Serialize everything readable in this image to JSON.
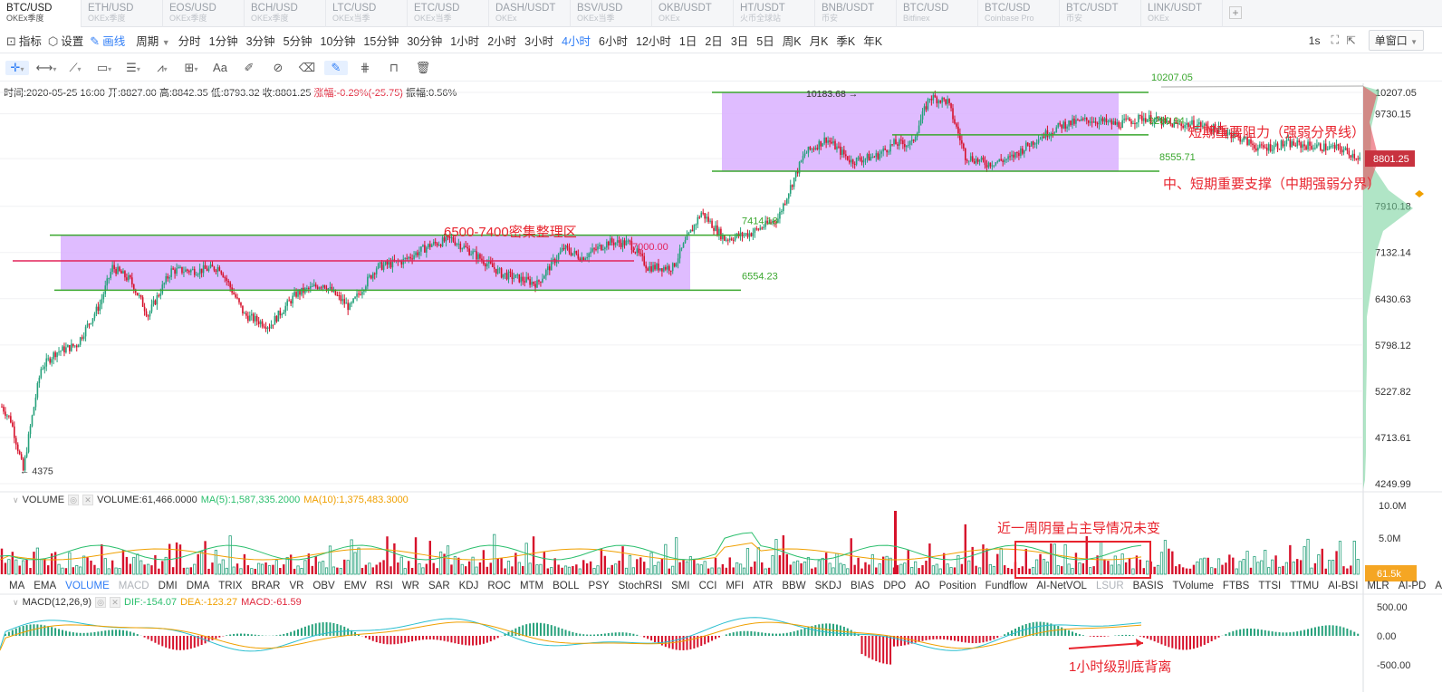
{
  "tabs": [
    {
      "pair": "BTC/USD",
      "exchange": "OKEx季度"
    },
    {
      "pair": "ETH/USD",
      "exchange": "OKEx季度"
    },
    {
      "pair": "EOS/USD",
      "exchange": "OKEx季度"
    },
    {
      "pair": "BCH/USD",
      "exchange": "OKEx季度"
    },
    {
      "pair": "LTC/USD",
      "exchange": "OKEx当季"
    },
    {
      "pair": "ETC/USD",
      "exchange": "OKEx当季"
    },
    {
      "pair": "DASH/USDT",
      "exchange": "OKEx"
    },
    {
      "pair": "BSV/USD",
      "exchange": "OKEx当季"
    },
    {
      "pair": "OKB/USDT",
      "exchange": "OKEx"
    },
    {
      "pair": "HT/USDT",
      "exchange": "火币全球站"
    },
    {
      "pair": "BNB/USDT",
      "exchange": "币安"
    },
    {
      "pair": "BTC/USD",
      "exchange": "Bitfinex"
    },
    {
      "pair": "BTC/USD",
      "exchange": "Coinbase Pro"
    },
    {
      "pair": "BTC/USDT",
      "exchange": "币安"
    },
    {
      "pair": "LINK/USDT",
      "exchange": "OKEx"
    }
  ],
  "tab_add_label": "+",
  "toolbar": {
    "indicator_label": "指标",
    "settings_label": "设置",
    "draw_label": "画线",
    "period_label": "周期",
    "intervals": [
      "分时",
      "1分钟",
      "3分钟",
      "5分钟",
      "10分钟",
      "15分钟",
      "30分钟",
      "1小时",
      "2小时",
      "3小时",
      "4小时",
      "6小时",
      "12小时",
      "1日",
      "2日",
      "3日",
      "5日",
      "周K",
      "月K",
      "季K",
      "年K"
    ],
    "active_interval": "4小时",
    "refresh_label": "1s",
    "window_label": "单窗口"
  },
  "drawtools": [
    "cursor",
    "ruler",
    "trendline",
    "rect",
    "fib",
    "wave",
    "measure",
    "text",
    "brush",
    "magnet",
    "eraser-pen",
    "grid",
    "lock",
    "trash"
  ],
  "ohlc": {
    "time": "时间:2020-05-25 16:00",
    "open": "开:8827.00",
    "high": "高:8842.35",
    "low": "低:8793.32",
    "close": "收:8801.25",
    "change": "涨幅:-0.29%(-25.75)",
    "amplitude": "振幅:0.56%"
  },
  "chart_data": {
    "type": "line",
    "title": "BTC/USD",
    "interval": "4小时",
    "y_ticks": [
      10207.05,
      9730.15,
      8801.25,
      7910.18,
      7132.14,
      6430.63,
      5798.12,
      5227.82,
      4713.61,
      4249.99
    ],
    "current_price": "8801.25",
    "series": [
      {
        "name": "close",
        "x_index": [
          0,
          5,
          12,
          22,
          30,
          42,
          55,
          62,
          72,
          82,
          95,
          110,
          122,
          136,
          150,
          165,
          180,
          195,
          210,
          225,
          240,
          252,
          265,
          280,
          300,
          315,
          325,
          340,
          352,
          362,
          376,
          392,
          405,
          420,
          435,
          450,
          462,
          476,
          490,
          500,
          510,
          520,
          530,
          540,
          552,
          565,
          580,
          595,
          610,
          625,
          640,
          655,
          670,
          690,
          705,
          720,
          735,
          750,
          762
        ],
        "y": [
          5050,
          4900,
          4375,
          5500,
          5700,
          5800,
          6350,
          6900,
          6700,
          6200,
          6850,
          6850,
          6900,
          6200,
          6050,
          6500,
          6650,
          6300,
          6900,
          7000,
          7250,
          7350,
          7100,
          6800,
          6650,
          7200,
          7050,
          7300,
          7280,
          6900,
          6900,
          7800,
          7350,
          7450,
          7700,
          8900,
          9200,
          8750,
          8850,
          9100,
          9100,
          10100,
          10000,
          8850,
          8700,
          8800,
          9200,
          9500,
          9600,
          9500,
          9650,
          9500,
          9500,
          9300,
          9000,
          9100,
          9050,
          9000,
          8801
        ]
      }
    ],
    "ylim": [
      4249.99,
      10207.05
    ],
    "annotations": {
      "high_marker": "10183.68",
      "low_marker": "4375",
      "line_7000": "7000.00",
      "range_top": "7414.18",
      "range_bottom": "6554.23",
      "upper_top": "10207.05",
      "resist": "9280.94",
      "support": "8555.71",
      "zone_label": "6500-7400密集整理区",
      "resist_label": "短期重要阻力（强弱分界线）",
      "support_label": "中、短期重要支撑（中期强弱分界）"
    },
    "volume": {
      "legend": "VOLUME",
      "value": "VOLUME:61,466.0000",
      "ma5": "MA(5):1,587,335.2000",
      "ma10": "MA(10):1,375,483.3000",
      "y_ticks": [
        "10.0M",
        "5.0M"
      ],
      "current": "61.5k",
      "note": "近一周阴量占主导情况未变"
    },
    "macd": {
      "legend": "MACD(12,26,9)",
      "dif": "DIF:-154.07",
      "dea": "DEA:-123.27",
      "macd": "MACD:-61.59",
      "y_ticks": [
        "500.00",
        "0.00",
        "-500.00"
      ],
      "note": "1小时级别底背离"
    }
  },
  "indicators": [
    "MA",
    "EMA",
    "VOLUME",
    "MACD",
    "DMI",
    "DMA",
    "TRIX",
    "BRAR",
    "VR",
    "OBV",
    "EMV",
    "RSI",
    "WR",
    "SAR",
    "KDJ",
    "ROC",
    "MTM",
    "BOLL",
    "PSY",
    "StochRSI",
    "SMI",
    "CCI",
    "MFI",
    "ATR",
    "BBW",
    "SKDJ",
    "BIAS",
    "DPO",
    "AO",
    "Position",
    "Fundflow",
    "AI-NetVOL",
    "LSUR",
    "BASIS",
    "TVolume",
    "FTBS",
    "TTSI",
    "TTMU",
    "AI-BSI",
    "MLR",
    "AI-PD",
    "AI-FDI"
  ],
  "active_indicator": "VOLUME",
  "dim_indicators": [
    "MACD",
    "LSUR"
  ],
  "colors": {
    "up": "#26a17b",
    "down": "#d6112b",
    "zone": "#d9b0ff",
    "accent": "#2f7df6",
    "annot": "#e8242e",
    "level": "#3aa72e"
  }
}
